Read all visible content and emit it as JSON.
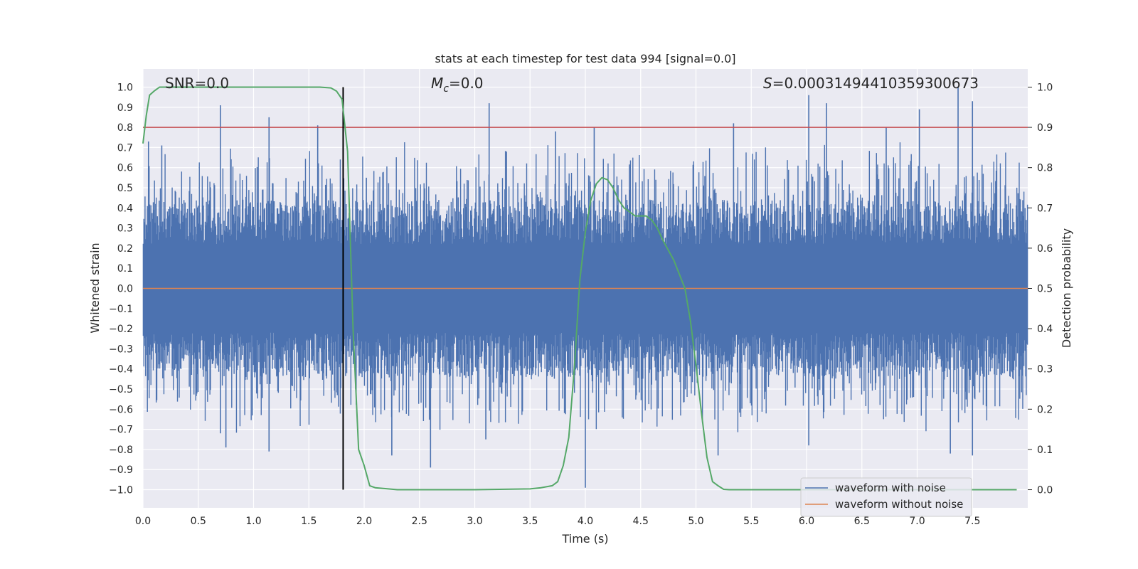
{
  "chart_data": {
    "type": "line",
    "title": "stats at each timestep for test data 994 [signal=0.0]",
    "xlabel": "Time (s)",
    "ylabel_left": "Whitened strain",
    "ylabel_right": "Detection probability",
    "xlim": [
      0.0,
      8.0
    ],
    "ylim_left": [
      -1.09,
      1.09
    ],
    "ylim_right": [
      -0.045,
      1.045
    ],
    "x_ticks": [
      "0.0",
      "0.5",
      "1.0",
      "1.5",
      "2.0",
      "2.5",
      "3.0",
      "3.5",
      "4.0",
      "4.5",
      "5.0",
      "5.5",
      "6.0",
      "6.5",
      "7.0",
      "7.5"
    ],
    "y_left_ticks": [
      "1.0",
      "0.9",
      "0.8",
      "0.7",
      "0.6",
      "0.5",
      "0.4",
      "0.3",
      "0.2",
      "0.1",
      "0.0",
      "−0.1",
      "−0.2",
      "−0.3",
      "−0.4",
      "−0.5",
      "−0.6",
      "−0.7",
      "−0.8",
      "−0.9",
      "−1.0"
    ],
    "y_right_ticks": [
      "1.0",
      "0.9",
      "0.8",
      "0.7",
      "0.6",
      "0.5",
      "0.4",
      "0.3",
      "0.2",
      "0.1",
      "0.0"
    ],
    "grid": true,
    "annotations": {
      "snr": "SNR=0.0",
      "mc_symbol": "M",
      "mc_subscript": "c",
      "mc_value": "=0.0",
      "s_symbol": "S",
      "s_value": "=0.00031494410359300673"
    },
    "threshold": {
      "y": 0.8,
      "color": "#c44e52"
    },
    "marker_line": {
      "x": 1.81,
      "y_range": [
        -1.0,
        1.0
      ],
      "color": "#000000"
    },
    "legend": {
      "placement": "lower right",
      "entries": [
        {
          "label": "waveform with noise",
          "color": "#4c72b0"
        },
        {
          "label": "waveform without noise",
          "color": "#dd8452"
        }
      ]
    },
    "series": [
      {
        "name": "waveform with noise",
        "axis": "left",
        "color": "#4c72b0",
        "style": "dense noise, amplitude roughly -0.9 to 1.0",
        "peaks_high": [
          [
            0.05,
            0.73
          ],
          [
            0.17,
            0.71
          ],
          [
            0.7,
            0.91
          ],
          [
            1.14,
            0.85
          ],
          [
            1.58,
            0.81
          ],
          [
            2.02,
            0.55
          ],
          [
            3.13,
            0.92
          ],
          [
            3.73,
            0.78
          ],
          [
            4.08,
            0.8
          ],
          [
            5.34,
            0.82
          ],
          [
            6.02,
            0.96
          ],
          [
            6.18,
            0.92
          ],
          [
            6.72,
            0.8
          ],
          [
            7.02,
            0.89
          ],
          [
            7.37,
            1.0
          ],
          [
            7.5,
            0.93
          ]
        ],
        "peaks_low": [
          [
            0.7,
            -0.72
          ],
          [
            0.75,
            -0.79
          ],
          [
            1.14,
            -0.81
          ],
          [
            2.25,
            -0.83
          ],
          [
            2.6,
            -0.89
          ],
          [
            3.1,
            -0.75
          ],
          [
            4.0,
            -0.99
          ],
          [
            5.2,
            -0.83
          ],
          [
            6.02,
            -0.78
          ],
          [
            7.3,
            -0.82
          ],
          [
            7.5,
            -0.83
          ]
        ]
      },
      {
        "name": "waveform without noise",
        "axis": "left",
        "color": "#dd8452",
        "x": [
          0.0,
          8.0
        ],
        "y": [
          0.0,
          0.0
        ]
      },
      {
        "name": "detection probability",
        "axis": "right",
        "color": "#55a868",
        "x": [
          0.0,
          0.03,
          0.06,
          0.1,
          0.15,
          0.3,
          0.6,
          1.0,
          1.3,
          1.6,
          1.7,
          1.75,
          1.8,
          1.85,
          1.9,
          1.95,
          2.0,
          2.05,
          2.1,
          2.3,
          2.8,
          3.0,
          3.5,
          3.6,
          3.7,
          3.75,
          3.8,
          3.85,
          3.9,
          3.95,
          4.0,
          4.05,
          4.1,
          4.15,
          4.2,
          4.25,
          4.3,
          4.35,
          4.4,
          4.45,
          4.5,
          4.55,
          4.6,
          4.65,
          4.7,
          4.8,
          4.9,
          4.95,
          5.0,
          5.05,
          5.1,
          5.15,
          5.2,
          5.25,
          5.3,
          5.35,
          5.4,
          5.45,
          5.5,
          6.0,
          7.0,
          7.9
        ],
        "y": [
          0.86,
          0.93,
          0.98,
          0.99,
          1.0,
          1.0,
          1.0,
          1.0,
          1.0,
          1.0,
          0.998,
          0.99,
          0.97,
          0.84,
          0.4,
          0.1,
          0.06,
          0.01,
          0.005,
          0.0,
          0.0,
          0.0,
          0.002,
          0.005,
          0.01,
          0.02,
          0.06,
          0.13,
          0.3,
          0.52,
          0.64,
          0.72,
          0.76,
          0.775,
          0.77,
          0.75,
          0.72,
          0.7,
          0.69,
          0.68,
          0.68,
          0.68,
          0.67,
          0.65,
          0.62,
          0.57,
          0.5,
          0.42,
          0.31,
          0.19,
          0.08,
          0.02,
          0.01,
          0.001,
          0.0,
          0.0,
          0.0,
          0.0,
          0.0,
          0.0,
          0.0,
          0.0
        ]
      }
    ]
  }
}
